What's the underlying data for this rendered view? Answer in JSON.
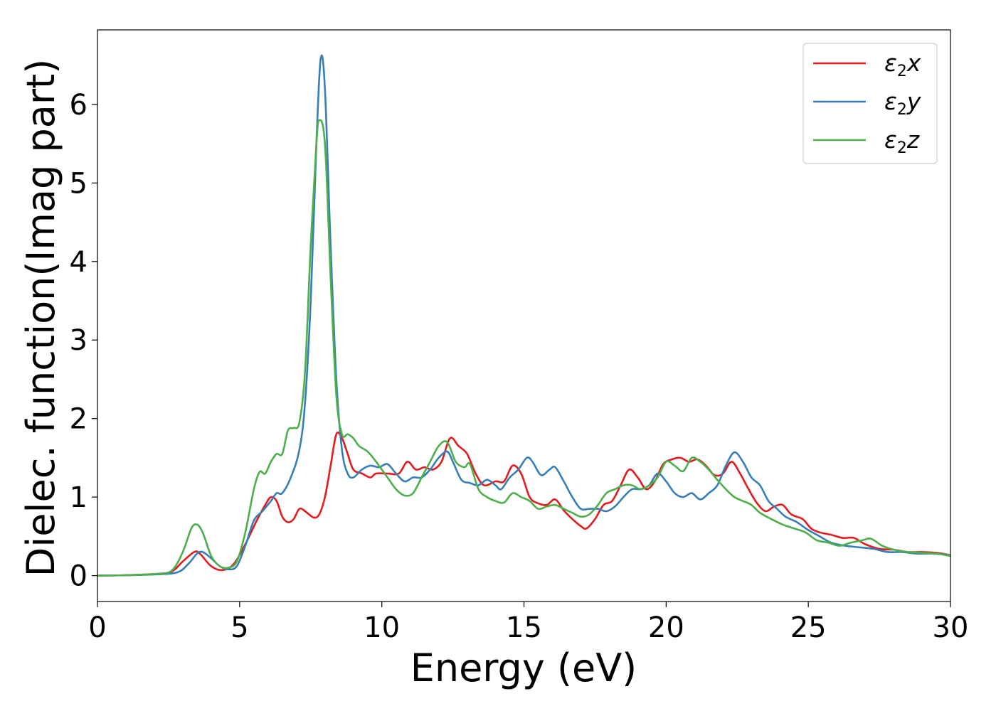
{
  "chart_data": {
    "type": "line",
    "title": "",
    "xlabel": "Energy (eV)",
    "ylabel": "Dielec. function(Imag part)",
    "xlim": [
      0,
      30
    ],
    "ylim": [
      -0.33,
      6.95
    ],
    "xticks": [
      0,
      5,
      10,
      15,
      20,
      25,
      30
    ],
    "yticks": [
      0,
      1,
      2,
      3,
      4,
      5,
      6
    ],
    "grid": false,
    "legend_position": "top-right",
    "series": [
      {
        "name": "ε₂x",
        "legend_main": "ε",
        "legend_sub": "2",
        "legend_suffix": "x",
        "color": "#e41a1c",
        "points": [
          [
            0,
            0
          ],
          [
            1,
            0.005
          ],
          [
            2,
            0.02
          ],
          [
            2.6,
            0.05
          ],
          [
            3,
            0.18
          ],
          [
            3.4,
            0.3
          ],
          [
            3.6,
            0.28
          ],
          [
            4,
            0.12
          ],
          [
            4.4,
            0.07
          ],
          [
            4.8,
            0.15
          ],
          [
            5.2,
            0.4
          ],
          [
            5.6,
            0.7
          ],
          [
            5.9,
            0.9
          ],
          [
            6.1,
            1.0
          ],
          [
            6.3,
            0.95
          ],
          [
            6.5,
            0.75
          ],
          [
            6.7,
            0.68
          ],
          [
            6.9,
            0.72
          ],
          [
            7.1,
            0.85
          ],
          [
            7.3,
            0.82
          ],
          [
            7.6,
            0.74
          ],
          [
            7.8,
            0.78
          ],
          [
            8.0,
            1.0
          ],
          [
            8.2,
            1.4
          ],
          [
            8.4,
            1.8
          ],
          [
            8.6,
            1.75
          ],
          [
            8.8,
            1.55
          ],
          [
            9.0,
            1.35
          ],
          [
            9.3,
            1.3
          ],
          [
            9.6,
            1.25
          ],
          [
            9.8,
            1.3
          ],
          [
            10.2,
            1.3
          ],
          [
            10.6,
            1.3
          ],
          [
            10.9,
            1.45
          ],
          [
            11.2,
            1.35
          ],
          [
            11.5,
            1.38
          ],
          [
            11.8,
            1.35
          ],
          [
            12.1,
            1.45
          ],
          [
            12.4,
            1.75
          ],
          [
            12.7,
            1.65
          ],
          [
            13.0,
            1.55
          ],
          [
            13.3,
            1.3
          ],
          [
            13.6,
            1.15
          ],
          [
            14.0,
            1.2
          ],
          [
            14.3,
            1.2
          ],
          [
            14.6,
            1.4
          ],
          [
            14.9,
            1.3
          ],
          [
            15.2,
            1.0
          ],
          [
            15.5,
            0.92
          ],
          [
            15.8,
            0.9
          ],
          [
            16.1,
            0.97
          ],
          [
            16.4,
            0.83
          ],
          [
            16.7,
            0.72
          ],
          [
            17.0,
            0.63
          ],
          [
            17.2,
            0.6
          ],
          [
            17.5,
            0.72
          ],
          [
            17.8,
            0.9
          ],
          [
            18.1,
            0.95
          ],
          [
            18.4,
            1.15
          ],
          [
            18.7,
            1.35
          ],
          [
            19.0,
            1.25
          ],
          [
            19.3,
            1.1
          ],
          [
            19.6,
            1.2
          ],
          [
            19.9,
            1.42
          ],
          [
            20.2,
            1.48
          ],
          [
            20.5,
            1.5
          ],
          [
            20.8,
            1.45
          ],
          [
            21.1,
            1.48
          ],
          [
            21.4,
            1.4
          ],
          [
            21.7,
            1.28
          ],
          [
            22.0,
            1.3
          ],
          [
            22.3,
            1.45
          ],
          [
            22.6,
            1.3
          ],
          [
            22.9,
            1.1
          ],
          [
            23.2,
            0.92
          ],
          [
            23.5,
            0.82
          ],
          [
            23.8,
            0.88
          ],
          [
            24.1,
            0.9
          ],
          [
            24.4,
            0.78
          ],
          [
            24.8,
            0.72
          ],
          [
            25.1,
            0.6
          ],
          [
            25.4,
            0.55
          ],
          [
            25.8,
            0.52
          ],
          [
            26.2,
            0.48
          ],
          [
            26.6,
            0.48
          ],
          [
            27.0,
            0.4
          ],
          [
            27.5,
            0.34
          ],
          [
            28.0,
            0.33
          ],
          [
            28.5,
            0.3
          ],
          [
            29.0,
            0.3
          ],
          [
            29.5,
            0.29
          ],
          [
            30.0,
            0.26
          ]
        ]
      },
      {
        "name": "ε₂y",
        "legend_main": "ε",
        "legend_sub": "2",
        "legend_suffix": "y",
        "color": "#377eb8",
        "points": [
          [
            0,
            0
          ],
          [
            1,
            0.005
          ],
          [
            2,
            0.015
          ],
          [
            2.8,
            0.04
          ],
          [
            3.2,
            0.15
          ],
          [
            3.5,
            0.28
          ],
          [
            3.7,
            0.3
          ],
          [
            4.0,
            0.22
          ],
          [
            4.3,
            0.12
          ],
          [
            4.6,
            0.08
          ],
          [
            4.9,
            0.12
          ],
          [
            5.2,
            0.38
          ],
          [
            5.5,
            0.7
          ],
          [
            5.8,
            0.82
          ],
          [
            6.1,
            0.95
          ],
          [
            6.3,
            1.05
          ],
          [
            6.5,
            1.05
          ],
          [
            6.8,
            1.25
          ],
          [
            7.1,
            1.6
          ],
          [
            7.3,
            2.2
          ],
          [
            7.5,
            3.5
          ],
          [
            7.7,
            5.5
          ],
          [
            7.85,
            6.58
          ],
          [
            8.0,
            6.2
          ],
          [
            8.2,
            4.2
          ],
          [
            8.4,
            2.5
          ],
          [
            8.6,
            1.6
          ],
          [
            8.8,
            1.3
          ],
          [
            9.0,
            1.25
          ],
          [
            9.3,
            1.35
          ],
          [
            9.6,
            1.4
          ],
          [
            9.9,
            1.38
          ],
          [
            10.2,
            1.42
          ],
          [
            10.5,
            1.3
          ],
          [
            10.8,
            1.2
          ],
          [
            11.1,
            1.25
          ],
          [
            11.4,
            1.25
          ],
          [
            11.7,
            1.35
          ],
          [
            12.0,
            1.5
          ],
          [
            12.3,
            1.58
          ],
          [
            12.5,
            1.45
          ],
          [
            12.8,
            1.22
          ],
          [
            13.1,
            1.18
          ],
          [
            13.4,
            1.15
          ],
          [
            13.7,
            1.22
          ],
          [
            14.0,
            1.15
          ],
          [
            14.2,
            1.1
          ],
          [
            14.5,
            1.25
          ],
          [
            14.8,
            1.35
          ],
          [
            15.1,
            1.5
          ],
          [
            15.3,
            1.45
          ],
          [
            15.6,
            1.28
          ],
          [
            15.9,
            1.35
          ],
          [
            16.1,
            1.38
          ],
          [
            16.4,
            1.2
          ],
          [
            16.7,
            1.0
          ],
          [
            17.0,
            0.85
          ],
          [
            17.3,
            0.85
          ],
          [
            17.6,
            0.85
          ],
          [
            17.9,
            0.82
          ],
          [
            18.2,
            0.88
          ],
          [
            18.5,
            1.0
          ],
          [
            18.8,
            1.1
          ],
          [
            19.1,
            1.1
          ],
          [
            19.4,
            1.15
          ],
          [
            19.7,
            1.3
          ],
          [
            20.0,
            1.2
          ],
          [
            20.3,
            1.05
          ],
          [
            20.6,
            1.0
          ],
          [
            20.9,
            1.05
          ],
          [
            21.2,
            0.97
          ],
          [
            21.5,
            1.05
          ],
          [
            21.8,
            1.15
          ],
          [
            22.1,
            1.4
          ],
          [
            22.4,
            1.57
          ],
          [
            22.7,
            1.45
          ],
          [
            23.0,
            1.25
          ],
          [
            23.3,
            1.15
          ],
          [
            23.6,
            0.95
          ],
          [
            23.9,
            0.85
          ],
          [
            24.2,
            0.75
          ],
          [
            24.6,
            0.68
          ],
          [
            25.0,
            0.58
          ],
          [
            25.4,
            0.5
          ],
          [
            25.8,
            0.42
          ],
          [
            26.3,
            0.38
          ],
          [
            26.8,
            0.36
          ],
          [
            27.3,
            0.34
          ],
          [
            27.8,
            0.3
          ],
          [
            28.3,
            0.3
          ],
          [
            28.8,
            0.28
          ],
          [
            29.4,
            0.28
          ],
          [
            30.0,
            0.26
          ]
        ]
      },
      {
        "name": "ε₂z",
        "legend_main": "ε",
        "legend_sub": "2",
        "legend_suffix": "z",
        "color": "#4daf4a",
        "points": [
          [
            0,
            0
          ],
          [
            1,
            0.005
          ],
          [
            2,
            0.02
          ],
          [
            2.6,
            0.06
          ],
          [
            3.0,
            0.3
          ],
          [
            3.3,
            0.6
          ],
          [
            3.5,
            0.65
          ],
          [
            3.7,
            0.55
          ],
          [
            4.0,
            0.25
          ],
          [
            4.3,
            0.12
          ],
          [
            4.6,
            0.1
          ],
          [
            4.9,
            0.18
          ],
          [
            5.2,
            0.55
          ],
          [
            5.5,
            1.1
          ],
          [
            5.7,
            1.32
          ],
          [
            5.9,
            1.3
          ],
          [
            6.1,
            1.45
          ],
          [
            6.3,
            1.55
          ],
          [
            6.5,
            1.55
          ],
          [
            6.7,
            1.85
          ],
          [
            6.9,
            1.88
          ],
          [
            7.1,
            1.95
          ],
          [
            7.3,
            2.6
          ],
          [
            7.5,
            4.2
          ],
          [
            7.7,
            5.5
          ],
          [
            7.8,
            5.8
          ],
          [
            8.0,
            5.5
          ],
          [
            8.2,
            3.8
          ],
          [
            8.4,
            2.3
          ],
          [
            8.6,
            1.8
          ],
          [
            8.8,
            1.8
          ],
          [
            9.0,
            1.75
          ],
          [
            9.2,
            1.65
          ],
          [
            9.5,
            1.58
          ],
          [
            9.8,
            1.45
          ],
          [
            10.2,
            1.25
          ],
          [
            10.5,
            1.1
          ],
          [
            10.8,
            1.02
          ],
          [
            11.1,
            1.05
          ],
          [
            11.4,
            1.25
          ],
          [
            11.7,
            1.45
          ],
          [
            12.0,
            1.65
          ],
          [
            12.3,
            1.7
          ],
          [
            12.6,
            1.45
          ],
          [
            12.9,
            1.38
          ],
          [
            13.1,
            1.42
          ],
          [
            13.4,
            1.1
          ],
          [
            13.7,
            1.0
          ],
          [
            14.0,
            0.95
          ],
          [
            14.3,
            0.93
          ],
          [
            14.6,
            1.05
          ],
          [
            14.9,
            1.0
          ],
          [
            15.2,
            0.95
          ],
          [
            15.5,
            0.85
          ],
          [
            15.8,
            0.88
          ],
          [
            16.1,
            0.9
          ],
          [
            16.4,
            0.85
          ],
          [
            16.7,
            0.8
          ],
          [
            17.0,
            0.75
          ],
          [
            17.3,
            0.78
          ],
          [
            17.6,
            0.9
          ],
          [
            17.9,
            1.05
          ],
          [
            18.2,
            1.1
          ],
          [
            18.5,
            1.15
          ],
          [
            18.8,
            1.15
          ],
          [
            19.1,
            1.1
          ],
          [
            19.4,
            1.15
          ],
          [
            19.7,
            1.25
          ],
          [
            20.0,
            1.45
          ],
          [
            20.3,
            1.4
          ],
          [
            20.6,
            1.33
          ],
          [
            20.9,
            1.5
          ],
          [
            21.2,
            1.45
          ],
          [
            21.5,
            1.35
          ],
          [
            21.8,
            1.22
          ],
          [
            22.1,
            1.1
          ],
          [
            22.4,
            1.0
          ],
          [
            22.7,
            0.95
          ],
          [
            23.0,
            0.9
          ],
          [
            23.3,
            0.8
          ],
          [
            23.7,
            0.72
          ],
          [
            24.1,
            0.65
          ],
          [
            24.5,
            0.6
          ],
          [
            24.9,
            0.55
          ],
          [
            25.3,
            0.45
          ],
          [
            25.7,
            0.42
          ],
          [
            26.1,
            0.38
          ],
          [
            26.5,
            0.42
          ],
          [
            26.9,
            0.45
          ],
          [
            27.2,
            0.47
          ],
          [
            27.6,
            0.38
          ],
          [
            28.0,
            0.33
          ],
          [
            28.5,
            0.3
          ],
          [
            29.0,
            0.29
          ],
          [
            29.5,
            0.28
          ],
          [
            30.0,
            0.25
          ]
        ]
      }
    ]
  }
}
